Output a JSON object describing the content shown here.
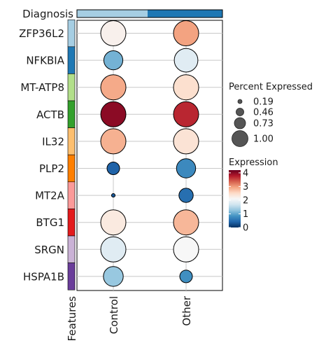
{
  "chart_data": {
    "type": "dotplot",
    "annotation": {
      "label": "Diagnosis",
      "groups": [
        {
          "name": "Control",
          "color": "#a6cee3"
        },
        {
          "name": "Other",
          "color": "#1f78b4"
        }
      ]
    },
    "side_annotation_label": "Features",
    "columns": [
      "Control",
      "Other"
    ],
    "rows": [
      {
        "gene": "ZFP36L2",
        "color": "#a6cee3",
        "values": [
          {
            "pct": 1.0,
            "expr": 2.2
          },
          {
            "pct": 1.0,
            "expr": 2.95
          }
        ]
      },
      {
        "gene": "NFKBIA",
        "color": "#1f78b4",
        "values": [
          {
            "pct": 0.57,
            "expr": 1.1
          },
          {
            "pct": 0.88,
            "expr": 1.85
          }
        ]
      },
      {
        "gene": "MT-ATP8",
        "color": "#b2df8a",
        "values": [
          {
            "pct": 1.0,
            "expr": 2.9
          },
          {
            "pct": 1.0,
            "expr": 2.45
          }
        ]
      },
      {
        "gene": "ACTB",
        "color": "#33a02c",
        "values": [
          {
            "pct": 1.0,
            "expr": 4.0
          },
          {
            "pct": 1.0,
            "expr": 3.7
          }
        ]
      },
      {
        "gene": "IL32",
        "color": "#fdbf6f",
        "values": [
          {
            "pct": 1.0,
            "expr": 2.85
          },
          {
            "pct": 1.0,
            "expr": 2.4
          }
        ]
      },
      {
        "gene": "PLP2",
        "color": "#ff7f00",
        "values": [
          {
            "pct": 0.25,
            "expr": 0.4
          },
          {
            "pct": 0.58,
            "expr": 0.75
          }
        ]
      },
      {
        "gene": "MT2A",
        "color": "#fb9a99",
        "values": [
          {
            "pct": 0.02,
            "expr": 0.3
          },
          {
            "pct": 0.32,
            "expr": 0.5
          }
        ]
      },
      {
        "gene": "BTG1",
        "color": "#e31a1c",
        "values": [
          {
            "pct": 1.0,
            "expr": 2.3
          },
          {
            "pct": 1.0,
            "expr": 2.8
          }
        ]
      },
      {
        "gene": "SRGN",
        "color": "#cab2d6",
        "values": [
          {
            "pct": 1.0,
            "expr": 1.85
          },
          {
            "pct": 1.0,
            "expr": 2.1
          }
        ]
      },
      {
        "gene": "HSPA1B",
        "color": "#6a3d9a",
        "values": [
          {
            "pct": 0.62,
            "expr": 1.3
          },
          {
            "pct": 0.25,
            "expr": 0.8
          }
        ]
      }
    ],
    "size_legend": {
      "title": "Percent Expressed",
      "values": [
        0.19,
        0.46,
        0.73,
        1.0
      ],
      "labels": [
        "0.19",
        "0.46",
        "0.73",
        "1.00"
      ]
    },
    "color_legend": {
      "title": "Expression",
      "range": [
        0,
        4.2
      ],
      "ticks": [
        0,
        1,
        2,
        3,
        4
      ],
      "tick_labels": [
        "0",
        "1",
        "2",
        "3",
        "4"
      ],
      "colormap": "RdBu_r",
      "stops": [
        "#053061",
        "#2166ac",
        "#4393c3",
        "#92c5de",
        "#d1e5f0",
        "#f7f7f7",
        "#fddbc7",
        "#f4a582",
        "#d6604d",
        "#b2182b",
        "#67001f"
      ]
    },
    "grid": true
  }
}
